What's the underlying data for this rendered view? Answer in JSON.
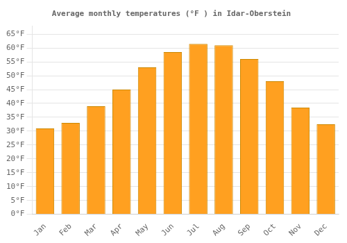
{
  "chart_data": {
    "type": "bar",
    "title": "Average monthly temperatures (°F ) in Idar-Oberstein",
    "categories": [
      "Jan",
      "Feb",
      "Mar",
      "Apr",
      "May",
      "Jun",
      "Jul",
      "Aug",
      "Sep",
      "Oct",
      "Nov",
      "Dec"
    ],
    "values": [
      31,
      33,
      39,
      45,
      53,
      58.5,
      61.5,
      61,
      56,
      48,
      38.5,
      32.5
    ],
    "color": "#FFA020",
    "ylim": [
      0,
      68
    ],
    "yticks": [
      {
        "value": 0,
        "label": "0°F"
      },
      {
        "value": 5,
        "label": "5°F"
      },
      {
        "value": 10,
        "label": "10°F"
      },
      {
        "value": 15,
        "label": "15°F"
      },
      {
        "value": 20,
        "label": "20°F"
      },
      {
        "value": 25,
        "label": "25°F"
      },
      {
        "value": 30,
        "label": "30°F"
      },
      {
        "value": 35,
        "label": "35°F"
      },
      {
        "value": 40,
        "label": "40°F"
      },
      {
        "value": 45,
        "label": "45°F"
      },
      {
        "value": 50,
        "label": "50°F"
      },
      {
        "value": 55,
        "label": "55°F"
      },
      {
        "value": 60,
        "label": "60°F"
      },
      {
        "value": 65,
        "label": "65°F"
      }
    ],
    "grid": true
  }
}
